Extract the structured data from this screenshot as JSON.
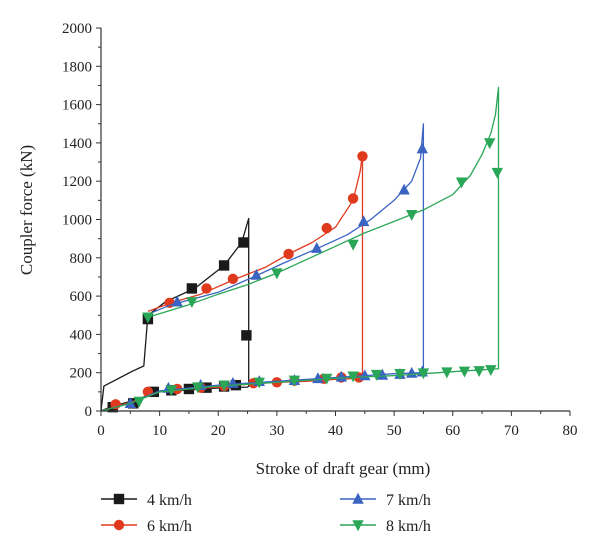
{
  "chart_data": {
    "type": "line",
    "xlabel": "Stroke of draft gear (mm)",
    "ylabel": "Coupler force (kN)",
    "xlim": [
      0,
      80
    ],
    "ylim": [
      0,
      2000
    ],
    "xticks": [
      0,
      10,
      20,
      30,
      40,
      50,
      60,
      70,
      80
    ],
    "yticks": [
      0,
      200,
      400,
      600,
      800,
      1000,
      1200,
      1400,
      1600,
      1800,
      2000
    ],
    "grid": false,
    "legend_position": "bottom",
    "series": [
      {
        "name": "4 km/h",
        "color": "#1a1a1a",
        "marker": "square",
        "x": [
          0,
          0.5,
          5.5,
          7.3,
          8.0,
          11,
          16,
          21,
          24,
          25.2,
          25.2,
          25.0,
          20,
          15,
          10,
          5,
          1.5,
          0
        ],
        "y": [
          0,
          130,
          210,
          235,
          500,
          570,
          640,
          760,
          880,
          1005,
          130,
          125,
          120,
          110,
          100,
          50,
          20,
          0
        ],
        "markers_x": [
          8.0,
          15.5,
          21,
          24.3,
          24.8,
          23,
          21,
          18,
          15,
          12,
          9,
          5.5,
          2
        ],
        "markers_y": [
          480,
          640,
          760,
          880,
          395,
          135,
          128,
          122,
          115,
          108,
          100,
          40,
          20
        ]
      },
      {
        "name": "6 km/h",
        "color": "#e03a1e",
        "marker": "circle",
        "x": [
          8.0,
          12,
          17,
          23,
          28,
          32,
          36,
          40,
          43,
          44.2,
          44.6,
          44.6,
          44,
          40,
          35,
          30,
          25,
          20,
          15,
          10,
          5,
          0
        ],
        "y": [
          520,
          565,
          610,
          690,
          750,
          820,
          880,
          960,
          1100,
          1250,
          1340,
          170,
          170,
          165,
          155,
          150,
          140,
          125,
          115,
          100,
          45,
          0
        ],
        "markers_x": [
          11.7,
          18,
          22.5,
          32,
          38.5,
          43,
          44.6,
          44,
          41,
          38,
          33,
          30,
          26,
          21,
          17,
          13,
          8,
          2.5
        ],
        "markers_y": [
          565,
          640,
          690,
          820,
          955,
          1110,
          1330,
          175,
          175,
          168,
          158,
          150,
          145,
          130,
          122,
          115,
          100,
          35
        ]
      },
      {
        "name": "7 km/h",
        "color": "#3a63c2",
        "marker": "triangle-up",
        "x": [
          8.0,
          12,
          20,
          26,
          31,
          37,
          42,
          46,
          50,
          53,
          54.5,
          55.0,
          55.0,
          54.8,
          50,
          45,
          40,
          35,
          30,
          25,
          20,
          15,
          10,
          5,
          0
        ],
        "y": [
          505,
          555,
          620,
          700,
          770,
          850,
          920,
          1000,
          1100,
          1200,
          1320,
          1500,
          200,
          200,
          195,
          185,
          175,
          165,
          155,
          145,
          135,
          120,
          105,
          40,
          0
        ],
        "markers_x": [
          13,
          26.5,
          36.8,
          44.8,
          51.7,
          54.8,
          54.8,
          53,
          51,
          48,
          45,
          41,
          37,
          33,
          27,
          22.5,
          17,
          11.5,
          5
        ],
        "markers_y": [
          570,
          710,
          850,
          990,
          1155,
          1370,
          205,
          198,
          192,
          188,
          185,
          178,
          170,
          160,
          155,
          145,
          135,
          120,
          40
        ]
      },
      {
        "name": "8 km/h",
        "color": "#2aa657",
        "marker": "triangle-down",
        "x": [
          8.0,
          15,
          20,
          25,
          30,
          35,
          40,
          45,
          50,
          55,
          60,
          63,
          65,
          66.5,
          67.3,
          67.8,
          67.8,
          67.5,
          65,
          60,
          55,
          50,
          45,
          40,
          35,
          30,
          25,
          20,
          15,
          10,
          5,
          0
        ],
        "y": [
          490,
          555,
          610,
          660,
          720,
          790,
          860,
          930,
          990,
          1050,
          1130,
          1230,
          1340,
          1450,
          1550,
          1690,
          220,
          220,
          215,
          205,
          195,
          185,
          178,
          170,
          160,
          150,
          140,
          130,
          115,
          100,
          40,
          0
        ],
        "markers_x": [
          8.0,
          15.5,
          30,
          43,
          53,
          61.5,
          66.3,
          67.6,
          66.5,
          64.5,
          62,
          59,
          55,
          51,
          47,
          43,
          38.5,
          33,
          27,
          21,
          16.5,
          12,
          6.5
        ],
        "markers_y": [
          490,
          570,
          720,
          870,
          1025,
          1195,
          1400,
          1245,
          215,
          210,
          207,
          203,
          198,
          195,
          190,
          182,
          170,
          160,
          150,
          135,
          125,
          110,
          50
        ]
      }
    ]
  }
}
